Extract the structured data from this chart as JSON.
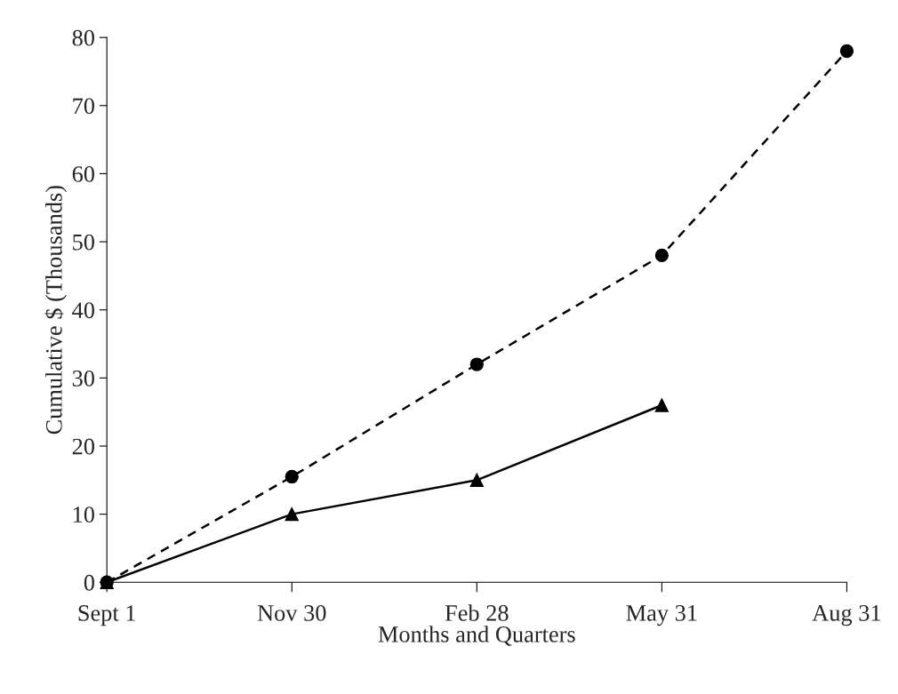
{
  "chart_data": {
    "type": "line",
    "xlabel": "Months and Quarters",
    "ylabel": "Cumulative $ (Thousands)",
    "categories": [
      "Sept 1",
      "Nov 30",
      "Feb 28",
      "May 31",
      "Aug 31"
    ],
    "series": [
      {
        "color": "#000000",
        "values": [
          0,
          15.5,
          32,
          48,
          78
        ],
        "marker": "circle",
        "line_style": "dashed"
      },
      {
        "color": "#000000",
        "values": [
          0,
          10,
          15,
          26,
          null
        ],
        "marker": "triangle",
        "line_style": "solid"
      }
    ],
    "ylim": [
      0,
      80
    ],
    "yticks": [
      0,
      10,
      20,
      30,
      40,
      50,
      60,
      70,
      80
    ],
    "grid": false,
    "legend": false
  }
}
